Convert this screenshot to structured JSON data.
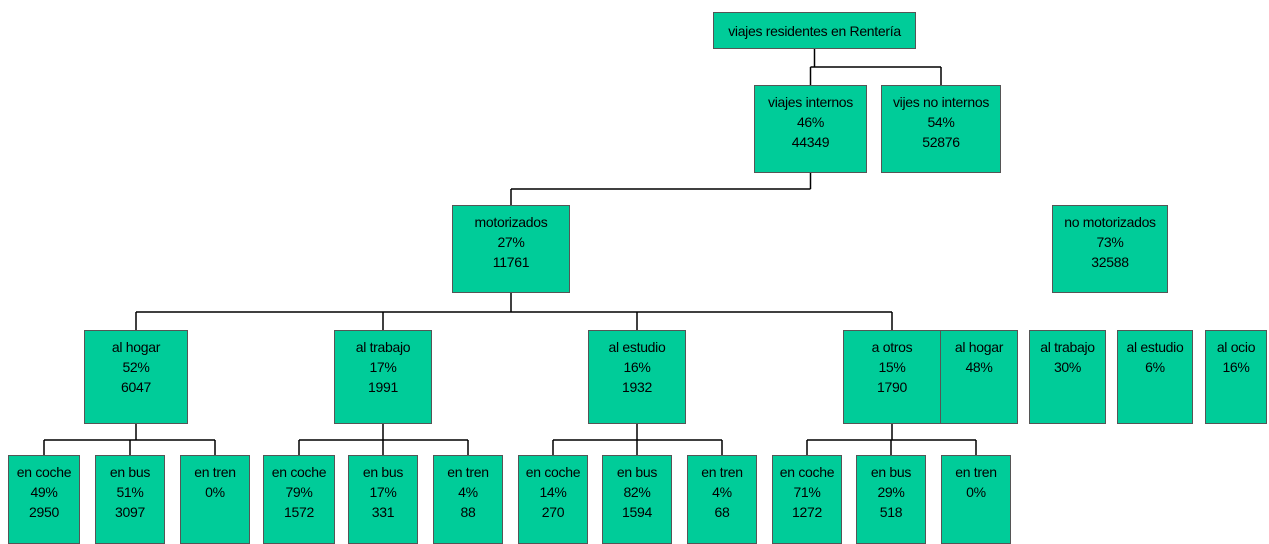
{
  "nodes": [
    {
      "label": "viajes residentes en Rentería"
    },
    {
      "label": "viajes internos",
      "share": "46%",
      "count": 44349
    },
    {
      "label": "vijes no internos",
      "share": "54%",
      "count": 52876
    },
    {
      "label": "motorizados",
      "share": "27%",
      "count": 11761
    },
    {
      "label": "no motorizados",
      "share": "73%",
      "count": 32588
    },
    {
      "label": "al hogar",
      "share": "52%",
      "count": 6047
    },
    {
      "label": "al trabajo",
      "share": "17%",
      "count": 1991
    },
    {
      "label": "al estudio",
      "share": "16%",
      "count": 1932
    },
    {
      "label": "a otros",
      "share": "15%",
      "count": 1790
    },
    {
      "label": "al hogar",
      "share": "48%"
    },
    {
      "label": "al trabajo",
      "share": "30%"
    },
    {
      "label": "al estudio",
      "share": "6%"
    },
    {
      "label": "al ocio",
      "share": "16%"
    },
    {
      "label": "en coche",
      "share": "49%",
      "count": 2950
    },
    {
      "label": "en bus",
      "share": "51%",
      "count": 3097
    },
    {
      "label": "en tren",
      "share": "0%"
    },
    {
      "label": "en coche",
      "share": "79%",
      "count": 1572
    },
    {
      "label": "en bus",
      "share": "17%",
      "count": 331
    },
    {
      "label": "en tren",
      "share": "4%",
      "count": 88
    },
    {
      "label": "en coche",
      "share": "14%",
      "count": 270
    },
    {
      "label": "en bus",
      "share": "82%",
      "count": 1594
    },
    {
      "label": "en tren",
      "share": "4%",
      "count": 68
    },
    {
      "label": "en coche",
      "share": "71%",
      "count": 1272
    },
    {
      "label": "en bus",
      "share": "29%",
      "count": 518
    },
    {
      "label": "en tren",
      "share": "0%"
    }
  ]
}
